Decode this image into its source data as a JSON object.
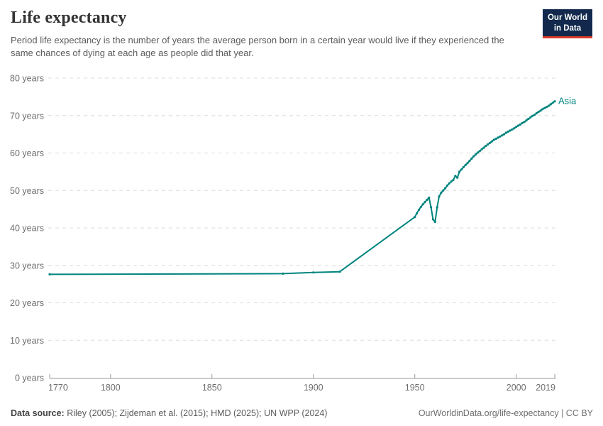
{
  "header": {
    "title": "Life expectancy",
    "subtitle": "Period life expectancy is the number of years the average person born in a certain year would live if they experienced the same chances of dying at each age as people did that year.",
    "logo": {
      "line1": "Our World",
      "line2": "in Data",
      "bg_color": "#12294d",
      "accent_color": "#d7382a"
    }
  },
  "chart_data": {
    "type": "line",
    "title": "Life expectancy",
    "ylabel": "years",
    "y_tick_suffix": " years",
    "ylim": [
      0,
      80
    ],
    "xlim": [
      1770,
      2019
    ],
    "y_ticks": [
      0,
      10,
      20,
      30,
      40,
      50,
      60,
      70,
      80
    ],
    "x_ticks": [
      1770,
      1800,
      1850,
      1900,
      1950,
      2000,
      2019
    ],
    "grid": "horizontal-dashed",
    "grid_color": "#dcdcdc",
    "axis_color": "#999999",
    "tick_label_color": "#6e6e6e",
    "legend_position": "end-of-line",
    "series": [
      {
        "name": "Asia",
        "color": "#00847E",
        "points": [
          [
            1770,
            27.6
          ],
          [
            1885,
            27.8
          ],
          [
            1900,
            28.1
          ],
          [
            1913,
            28.3
          ],
          [
            1950,
            42.9
          ],
          [
            1951,
            43.9
          ],
          [
            1952,
            44.8
          ],
          [
            1953,
            45.6
          ],
          [
            1954,
            46.3
          ],
          [
            1955,
            46.9
          ],
          [
            1956,
            47.5
          ],
          [
            1957,
            48.1
          ],
          [
            1958,
            45.5
          ],
          [
            1959,
            42.3
          ],
          [
            1960,
            41.6
          ],
          [
            1961,
            45.5
          ],
          [
            1962,
            48.4
          ],
          [
            1963,
            49.4
          ],
          [
            1964,
            50.0
          ],
          [
            1965,
            50.6
          ],
          [
            1966,
            51.3
          ],
          [
            1967,
            51.9
          ],
          [
            1968,
            52.4
          ],
          [
            1969,
            52.8
          ],
          [
            1970,
            53.9
          ],
          [
            1971,
            53.4
          ],
          [
            1972,
            55.0
          ],
          [
            1973,
            55.6
          ],
          [
            1974,
            56.2
          ],
          [
            1975,
            56.8
          ],
          [
            1976,
            57.3
          ],
          [
            1977,
            57.9
          ],
          [
            1978,
            58.5
          ],
          [
            1979,
            59.1
          ],
          [
            1980,
            59.6
          ],
          [
            1981,
            60.1
          ],
          [
            1982,
            60.5
          ],
          [
            1983,
            61.0
          ],
          [
            1984,
            61.4
          ],
          [
            1985,
            61.9
          ],
          [
            1986,
            62.3
          ],
          [
            1987,
            62.7
          ],
          [
            1988,
            63.1
          ],
          [
            1989,
            63.5
          ],
          [
            1990,
            63.8
          ],
          [
            1991,
            64.1
          ],
          [
            1992,
            64.4
          ],
          [
            1993,
            64.7
          ],
          [
            1994,
            65.0
          ],
          [
            1995,
            65.4
          ],
          [
            1996,
            65.7
          ],
          [
            1997,
            66.0
          ],
          [
            1998,
            66.3
          ],
          [
            1999,
            66.6
          ],
          [
            2000,
            67.0
          ],
          [
            2001,
            67.3
          ],
          [
            2002,
            67.6
          ],
          [
            2003,
            68.0
          ],
          [
            2004,
            68.3
          ],
          [
            2005,
            68.7
          ],
          [
            2006,
            69.1
          ],
          [
            2007,
            69.5
          ],
          [
            2008,
            69.9
          ],
          [
            2009,
            70.2
          ],
          [
            2010,
            70.6
          ],
          [
            2011,
            71.0
          ],
          [
            2012,
            71.3
          ],
          [
            2013,
            71.7
          ],
          [
            2014,
            72.0
          ],
          [
            2015,
            72.3
          ],
          [
            2016,
            72.6
          ],
          [
            2017,
            73.0
          ],
          [
            2018,
            73.4
          ],
          [
            2019,
            73.8
          ]
        ]
      }
    ]
  },
  "footer": {
    "source_label": "Data source:",
    "source_text": " Riley (2005); Zijdeman et al. (2015); HMD (2025); UN WPP (2024)",
    "link_text": "OurWorldinData.org/life-expectancy | CC BY"
  }
}
